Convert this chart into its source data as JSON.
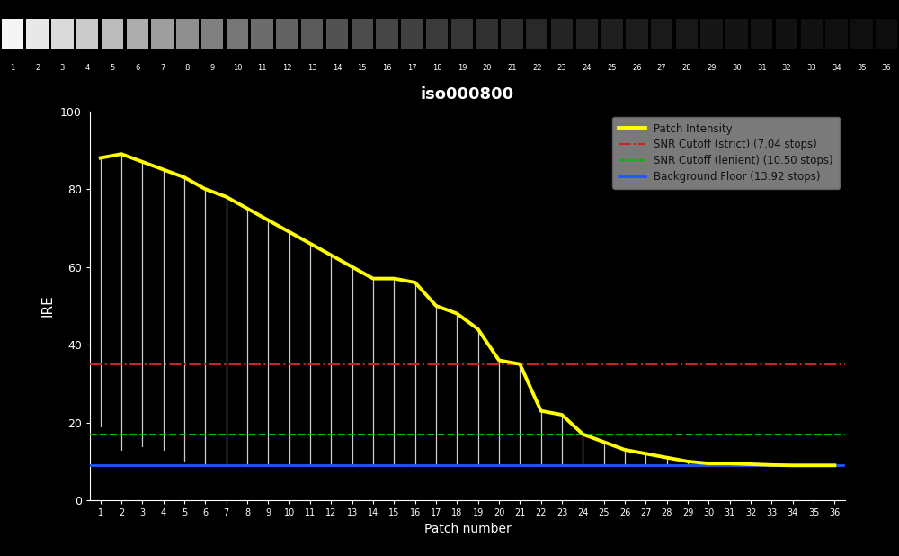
{
  "title": "iso000800",
  "xlabel": "Patch number",
  "ylabel": "IRE",
  "background_color": "#000000",
  "text_color": "#ffffff",
  "n_patches": 36,
  "ylim": [
    0,
    100
  ],
  "xlim": [
    0.5,
    36.5
  ],
  "snr_strict": 35.0,
  "snr_strict_label": "SNR Cutoff (strict) (7.04 stops)",
  "snr_lenient": 17.0,
  "snr_lenient_label": "SNR Cutoff (lenient) (10.50 stops)",
  "bg_floor": 9.0,
  "bg_floor_label": "Background Floor (13.92 stops)",
  "patch_intensity_label": "Patch Intensity",
  "envelope_color": "#ffff00",
  "white_line_color": "#cccccc",
  "red_line_color": "#cc2222",
  "green_line_color": "#00bb00",
  "blue_line_color": "#2255ff",
  "legend_bg_color": "#888888",
  "patch_values": [
    88,
    89,
    87,
    85,
    83,
    80,
    78,
    75,
    72,
    69,
    66,
    63,
    60,
    57,
    57,
    56,
    50,
    48,
    44,
    36,
    35,
    23,
    22,
    17,
    15,
    13,
    12,
    11,
    10,
    9.5,
    9.5,
    9.3,
    9.1,
    9.0,
    9.0,
    9.0
  ],
  "floor_values": [
    19,
    13,
    14,
    13,
    10,
    9,
    9,
    9,
    9,
    9,
    9,
    9,
    9,
    9,
    9,
    9,
    9,
    9,
    9,
    9,
    9,
    9,
    9,
    9,
    9,
    9,
    9,
    9,
    9,
    9,
    9,
    9,
    9,
    9,
    9,
    9
  ],
  "patch_gray_values": [
    245,
    232,
    218,
    203,
    188,
    173,
    158,
    143,
    128,
    118,
    108,
    98,
    90,
    82,
    76,
    70,
    65,
    59,
    54,
    49,
    45,
    41,
    37,
    34,
    31,
    28,
    26,
    24,
    22,
    20,
    19,
    18,
    17,
    16,
    15,
    14
  ]
}
